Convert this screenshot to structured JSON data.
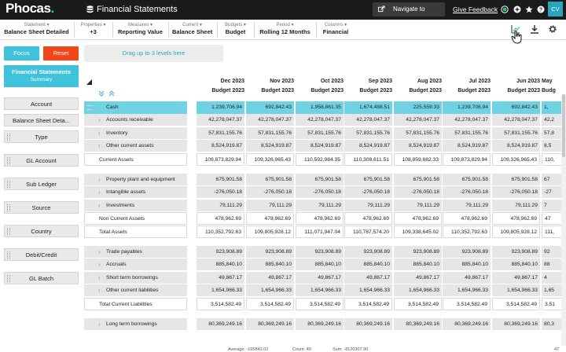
{
  "app": {
    "logo": "Phocas",
    "title": "Financial Statements",
    "navigate_label": "Navigate to",
    "feedback_label": "Give Feedback",
    "avatar_initials": "CV",
    "accent": "#3fc3dc",
    "reset_color": "#f2451a"
  },
  "filters": [
    {
      "label": "Statement",
      "value": "Balance Sheet Detailed"
    },
    {
      "label": "Properties",
      "value": "+3"
    },
    {
      "label": "Measures",
      "value": "Reporting Value"
    },
    {
      "label": "Current",
      "value": "Balance Sheet"
    },
    {
      "label": "Budgets",
      "value": "Budget"
    },
    {
      "label": "Period",
      "value": "Rolling 12 Months"
    },
    {
      "label": "Columns",
      "value": "Financial"
    }
  ],
  "left_panel": {
    "focus_label": "Focus",
    "reset_label": "Reset",
    "statement_title": "Financial Statements",
    "statement_sub": "Summary",
    "dimensions": [
      "Account",
      "Balance Sheet Deta...",
      "Type",
      "GL Account",
      "Sub Ledger",
      "Source",
      "Country",
      "Debit/Credit",
      "GL Batch"
    ]
  },
  "dropzone_label": "Drag up to 3 levels here",
  "grid": {
    "columns": [
      {
        "date": "Dec 2023",
        "sub": "Budget 2023"
      },
      {
        "date": "Nov 2023",
        "sub": "Budget 2023"
      },
      {
        "date": "Oct 2023",
        "sub": "Budget 2023"
      },
      {
        "date": "Sep 2023",
        "sub": "Budget 2023"
      },
      {
        "date": "Aug 2023",
        "sub": "Budget 2023"
      },
      {
        "date": "Jul 2023",
        "sub": "Budget 2023"
      },
      {
        "date": "Jun 2023",
        "sub": "Budget 2023"
      },
      {
        "date": "May",
        "sub": "Budg"
      }
    ],
    "rows": [
      {
        "label": "Cash",
        "kind": "sel",
        "values": [
          "1,239,706.94",
          "692,842.43",
          "1,958,861.35",
          "1,674,488.51",
          "225,559.33",
          "1,239,706.94",
          "692,842.43",
          "1,"
        ]
      },
      {
        "label": "Accounts receivable",
        "kind": "item",
        "values": [
          "42,278,047.37",
          "42,278,047.37",
          "42,278,047.37",
          "42,278,047.37",
          "42,278,047.37",
          "42,278,047.37",
          "42,278,047.37",
          "42,2"
        ]
      },
      {
        "label": "Inventory",
        "kind": "item",
        "values": [
          "57,831,155.76",
          "57,831,155.76",
          "57,831,155.76",
          "57,831,155.76",
          "57,831,155.76",
          "57,831,155.76",
          "57,831,155.76",
          "57,8"
        ]
      },
      {
        "label": "Other current assets",
        "kind": "item",
        "values": [
          "8,524,919.87",
          "8,524,919.87",
          "8,524,919.87",
          "8,524,919.87",
          "8,524,919.87",
          "8,524,919.87",
          "8,524,919.87",
          "8,5"
        ]
      },
      {
        "label": "Current Assets",
        "kind": "tot",
        "values": [
          "109,873,829.94",
          "109,326,965.43",
          "110,592,984.35",
          "110,308,611.51",
          "108,859,682.33",
          "109,873,829.94",
          "109,326,965.43",
          "110,"
        ]
      },
      {
        "label": "",
        "kind": "gap",
        "values": []
      },
      {
        "label": "Property plant and equipment",
        "kind": "item",
        "values": [
          "675,901.58",
          "675,901.58",
          "675,901.58",
          "675,901.58",
          "675,901.58",
          "675,901.58",
          "675,901.58",
          "67"
        ]
      },
      {
        "label": "Intangible assets",
        "kind": "item",
        "values": [
          "-276,050.18",
          "-276,050.18",
          "-276,050.18",
          "-276,050.18",
          "-276,050.18",
          "-276,050.18",
          "-276,050.18",
          "-27"
        ]
      },
      {
        "label": "Investments",
        "kind": "item",
        "values": [
          "79,111.29",
          "79,111.29",
          "79,111.29",
          "79,111.29",
          "79,111.29",
          "79,111.29",
          "79,111.29",
          "7"
        ]
      },
      {
        "label": "Non Current Assets",
        "kind": "tot",
        "values": [
          "478,962.69",
          "478,962.69",
          "478,962.69",
          "478,962.69",
          "478,962.69",
          "478,962.69",
          "478,962.69",
          "47"
        ]
      },
      {
        "label": "Total Assets",
        "kind": "tot",
        "values": [
          "110,352,792.63",
          "109,805,928.12",
          "111,071,947.04",
          "110,787,574.20",
          "109,338,645.02",
          "110,352,792.63",
          "109,805,928.12",
          "111,"
        ]
      },
      {
        "label": "",
        "kind": "gap",
        "values": []
      },
      {
        "label": "Trade payables",
        "kind": "item",
        "values": [
          "923,908.89",
          "923,908.89",
          "923,908.89",
          "923,908.89",
          "923,908.89",
          "923,908.89",
          "923,908.89",
          "92"
        ]
      },
      {
        "label": "Accruals",
        "kind": "item",
        "values": [
          "885,840.10",
          "885,840.10",
          "885,840.10",
          "885,840.10",
          "885,840.10",
          "885,840.10",
          "885,840.10",
          "88"
        ]
      },
      {
        "label": "Short term borrowings",
        "kind": "item",
        "values": [
          "49,867.17",
          "49,867.17",
          "49,867.17",
          "49,867.17",
          "49,867.17",
          "49,867.17",
          "49,867.17",
          "4"
        ]
      },
      {
        "label": "Other current liabilities",
        "kind": "item",
        "values": [
          "1,654,966.33",
          "1,654,966.33",
          "1,654,966.33",
          "1,654,966.33",
          "1,654,966.33",
          "1,654,966.33",
          "1,654,966.33",
          "1,65"
        ]
      },
      {
        "label": "Total Current Liabilities",
        "kind": "tot",
        "values": [
          "3,514,582.49",
          "3,514,582.49",
          "3,514,582.49",
          "3,514,582.49",
          "3,514,582.49",
          "3,514,582.49",
          "3,514,582.49",
          "3,51"
        ]
      },
      {
        "label": "",
        "kind": "gap",
        "values": []
      },
      {
        "label": "Long term borrowings",
        "kind": "item",
        "values": [
          "80,369,249.16",
          "80,369,249.16",
          "80,369,249.16",
          "80,369,249.16",
          "80,369,249.16",
          "80,369,249.16",
          "80,369,249.16",
          "80,3"
        ]
      }
    ]
  },
  "status": {
    "average": "Average: -165843.02",
    "count": "Count: 49",
    "sum": "Sum: -8126307.90",
    "right": "47"
  }
}
